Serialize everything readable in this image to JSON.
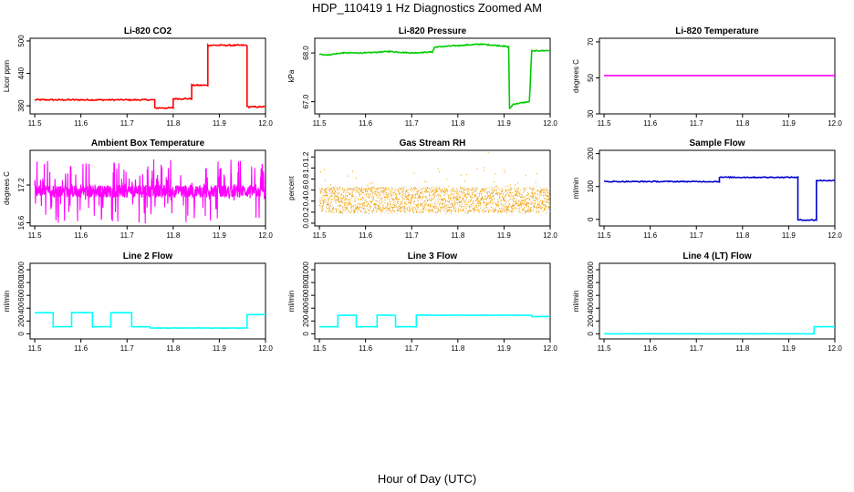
{
  "page": {
    "title": "HDP_110419  1 Hz Diagnostics Zoomed AM",
    "xlabel": "Hour of Day (UTC)"
  },
  "chart_data": [
    {
      "type": "line",
      "title": "Li-820 CO2",
      "ylabel": "Licor ppm",
      "color": "#ff0000",
      "xlim": [
        11.49,
        12.0
      ],
      "xticks": [
        "11.5",
        "11.6",
        "11.7",
        "11.8",
        "11.9",
        "12.0"
      ],
      "ylim": [
        365,
        505
      ],
      "yticks": [
        "380",
        "440",
        "500"
      ],
      "noise": 1.2,
      "steps": [
        [
          11.5,
          391
        ],
        [
          11.76,
          376
        ],
        [
          11.8,
          393
        ],
        [
          11.84,
          418
        ],
        [
          11.875,
          492
        ],
        [
          11.96,
          378
        ],
        [
          12.0,
          378
        ]
      ]
    },
    {
      "type": "line",
      "title": "Li-820 Pressure",
      "ylabel": "kPa",
      "color": "#00cc00",
      "xlim": [
        11.49,
        12.0
      ],
      "xticks": [
        "11.5",
        "11.6",
        "11.7",
        "11.8",
        "11.9",
        "12.0"
      ],
      "ylim": [
        66.75,
        68.3
      ],
      "yticks": [
        "67.0",
        "68.0"
      ],
      "noise": 0.01,
      "points": [
        [
          11.5,
          67.97
        ],
        [
          11.52,
          67.96
        ],
        [
          11.55,
          68.0
        ],
        [
          11.6,
          68.0
        ],
        [
          11.65,
          68.03
        ],
        [
          11.7,
          68.0
        ],
        [
          11.745,
          68.02
        ],
        [
          11.75,
          68.12
        ],
        [
          11.8,
          68.15
        ],
        [
          11.85,
          68.18
        ],
        [
          11.9,
          68.14
        ],
        [
          11.91,
          68.12
        ],
        [
          11.912,
          66.85
        ],
        [
          11.92,
          66.95
        ],
        [
          11.955,
          67.0
        ],
        [
          11.96,
          68.04
        ],
        [
          12.0,
          68.05
        ]
      ]
    },
    {
      "type": "line",
      "title": "Li-820 Temperature",
      "ylabel": "degrees C",
      "color": "#ff00ff",
      "xlim": [
        11.49,
        12.0
      ],
      "xticks": [
        "11.5",
        "11.6",
        "11.7",
        "11.8",
        "11.9",
        "12.0"
      ],
      "ylim": [
        30,
        72
      ],
      "yticks": [
        "30",
        "50",
        "70"
      ],
      "noise": 0,
      "points": [
        [
          11.5,
          51.3
        ],
        [
          12.0,
          51.3
        ]
      ]
    },
    {
      "type": "line",
      "title": "Ambient Box Temperature",
      "ylabel": "degrees C",
      "color": "#ff00ff",
      "xlim": [
        11.49,
        12.0
      ],
      "xticks": [
        "11.5",
        "11.6",
        "11.7",
        "11.8",
        "11.9",
        "12.0"
      ],
      "ylim": [
        16.55,
        17.75
      ],
      "yticks": [
        "16.6",
        "17.2"
      ],
      "noise": 0.32,
      "noise_mode": "spiky",
      "center": 17.1,
      "lw": 1.1,
      "points": [
        [
          11.5,
          17.1
        ],
        [
          12.0,
          17.1
        ]
      ]
    },
    {
      "type": "scatter",
      "title": "Gas Stream RH",
      "ylabel": "percent",
      "color": "#ffa500",
      "xlim": [
        11.49,
        12.0
      ],
      "xticks": [
        "11.5",
        "11.6",
        "11.7",
        "11.8",
        "11.9",
        "12.0"
      ],
      "ylim": [
        -0.05,
        1.32
      ],
      "yticks": [
        "0.0",
        "0.2",
        "0.4",
        "0.6",
        "0.8",
        "1.0",
        "1.2"
      ],
      "center": 0.42,
      "noise": 0.28,
      "noise_mode": "rh",
      "points": [
        [
          11.5,
          0.42
        ],
        [
          12.0,
          0.42
        ]
      ]
    },
    {
      "type": "line",
      "title": "Sample Flow",
      "ylabel": "ml/min",
      "color": "#0000cc",
      "xlim": [
        11.49,
        12.0
      ],
      "xticks": [
        "11.5",
        "11.6",
        "11.7",
        "11.8",
        "11.9",
        "12.0"
      ],
      "ylim": [
        -20,
        210
      ],
      "yticks": [
        "0",
        "100",
        "200"
      ],
      "noise": 1.5,
      "steps": [
        [
          11.5,
          115
        ],
        [
          11.75,
          128
        ],
        [
          11.92,
          -2
        ],
        [
          11.96,
          118
        ],
        [
          12.0,
          118
        ]
      ]
    },
    {
      "type": "line",
      "title": "Line 2 Flow",
      "ylabel": "ml/min",
      "color": "#00ffff",
      "xlim": [
        11.49,
        12.0
      ],
      "xticks": [
        "11.5",
        "11.6",
        "11.7",
        "11.8",
        "11.9",
        "12.0"
      ],
      "ylim": [
        -80,
        1100
      ],
      "yticks": [
        "0",
        "200",
        "400",
        "600",
        "800",
        "1000"
      ],
      "noise": 3,
      "steps": [
        [
          11.5,
          330
        ],
        [
          11.54,
          110
        ],
        [
          11.58,
          330
        ],
        [
          11.625,
          110
        ],
        [
          11.665,
          330
        ],
        [
          11.71,
          110
        ],
        [
          11.75,
          90
        ],
        [
          11.96,
          300
        ],
        [
          12.0,
          300
        ]
      ]
    },
    {
      "type": "line",
      "title": "Line 3 Flow",
      "ylabel": "ml/min",
      "color": "#00ffff",
      "xlim": [
        11.49,
        12.0
      ],
      "xticks": [
        "11.5",
        "11.6",
        "11.7",
        "11.8",
        "11.9",
        "12.0"
      ],
      "ylim": [
        -80,
        1100
      ],
      "yticks": [
        "0",
        "200",
        "400",
        "600",
        "800",
        "1000"
      ],
      "noise": 3,
      "steps": [
        [
          11.5,
          110
        ],
        [
          11.54,
          290
        ],
        [
          11.58,
          110
        ],
        [
          11.625,
          290
        ],
        [
          11.665,
          110
        ],
        [
          11.71,
          290
        ],
        [
          11.96,
          270
        ],
        [
          12.0,
          270
        ]
      ]
    },
    {
      "type": "line",
      "title": "Line 4 (LT) Flow",
      "ylabel": "ml/min",
      "color": "#00ffff",
      "xlim": [
        11.49,
        12.0
      ],
      "xticks": [
        "11.5",
        "11.6",
        "11.7",
        "11.8",
        "11.9",
        "12.0"
      ],
      "ylim": [
        -80,
        1100
      ],
      "yticks": [
        "0",
        "200",
        "400",
        "600",
        "800",
        "1000"
      ],
      "noise": 2,
      "steps": [
        [
          11.5,
          0
        ],
        [
          11.955,
          110
        ],
        [
          12.0,
          110
        ]
      ]
    }
  ]
}
